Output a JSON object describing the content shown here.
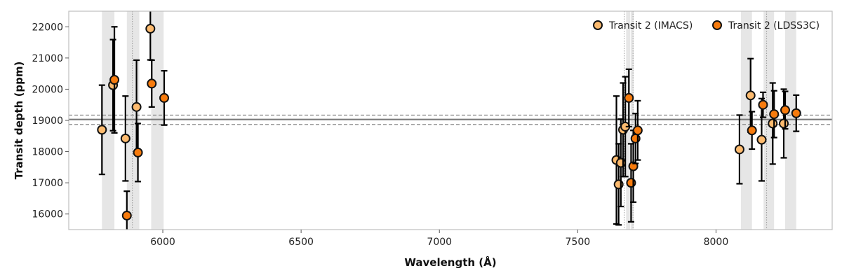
{
  "chart_data": {
    "type": "scatter",
    "title": "",
    "xlabel": "Wavelength (Å)",
    "ylabel": "Transit depth (ppm)",
    "xlim": [
      5660,
      8420
    ],
    "ylim": [
      15500,
      22500
    ],
    "x_ticks": [
      6000,
      6500,
      7000,
      7500,
      8000
    ],
    "y_ticks": [
      16000,
      17000,
      18000,
      19000,
      20000,
      21000,
      22000
    ],
    "grid": false,
    "legend_position": "top-right",
    "mean_depth": 19030,
    "mean_band": [
      18870,
      19170
    ],
    "shaded_bands": [
      [
        5780,
        5825
      ],
      [
        5870,
        5915
      ],
      [
        5958,
        6003
      ],
      [
        7675,
        7690
      ],
      [
        7692,
        7702
      ],
      [
        8090,
        8130
      ],
      [
        8172,
        8210
      ],
      [
        8250,
        8290
      ]
    ],
    "line_markers": [
      5890,
      7668,
      7700,
      8183
    ],
    "series": [
      {
        "name": "Transit 2 (IMACS)",
        "color": "#fdbb6f",
        "points": [
          {
            "x": 5780,
            "y": 18700,
            "err": 1430
          },
          {
            "x": 5820,
            "y": 20130,
            "err": 1460
          },
          {
            "x": 5865,
            "y": 18420,
            "err": 1360
          },
          {
            "x": 5905,
            "y": 19430,
            "err": 1500
          },
          {
            "x": 5955,
            "y": 21940,
            "err": 1000
          },
          {
            "x": 7640,
            "y": 17730,
            "err": 2050
          },
          {
            "x": 7648,
            "y": 16950,
            "err": 1300
          },
          {
            "x": 7656,
            "y": 17640,
            "err": 1400
          },
          {
            "x": 7664,
            "y": 18700,
            "err": 1500
          },
          {
            "x": 7672,
            "y": 18800,
            "err": 1600
          },
          {
            "x": 8085,
            "y": 18070,
            "err": 1100
          },
          {
            "x": 8125,
            "y": 19800,
            "err": 1180
          },
          {
            "x": 8165,
            "y": 18380,
            "err": 1320
          },
          {
            "x": 8205,
            "y": 18900,
            "err": 1300
          },
          {
            "x": 8245,
            "y": 18900,
            "err": 1100
          }
        ]
      },
      {
        "name": "Transit 2 (LDSS3C)",
        "color": "#f77b0d",
        "points": [
          {
            "x": 5825,
            "y": 20300,
            "err": 1700
          },
          {
            "x": 5870,
            "y": 15950,
            "err": 780
          },
          {
            "x": 5910,
            "y": 17970,
            "err": 930
          },
          {
            "x": 5960,
            "y": 20180,
            "err": 750
          },
          {
            "x": 6005,
            "y": 19720,
            "err": 870
          },
          {
            "x": 7685,
            "y": 19720,
            "err": 920
          },
          {
            "x": 7693,
            "y": 17000,
            "err": 1250
          },
          {
            "x": 7701,
            "y": 17530,
            "err": 1150
          },
          {
            "x": 7709,
            "y": 18420,
            "err": 800
          },
          {
            "x": 7717,
            "y": 18680,
            "err": 950
          },
          {
            "x": 8130,
            "y": 18680,
            "err": 600
          },
          {
            "x": 8170,
            "y": 19500,
            "err": 400
          },
          {
            "x": 8210,
            "y": 19200,
            "err": 750
          },
          {
            "x": 8250,
            "y": 19330,
            "err": 600
          },
          {
            "x": 8290,
            "y": 19230,
            "err": 580
          }
        ]
      }
    ]
  }
}
